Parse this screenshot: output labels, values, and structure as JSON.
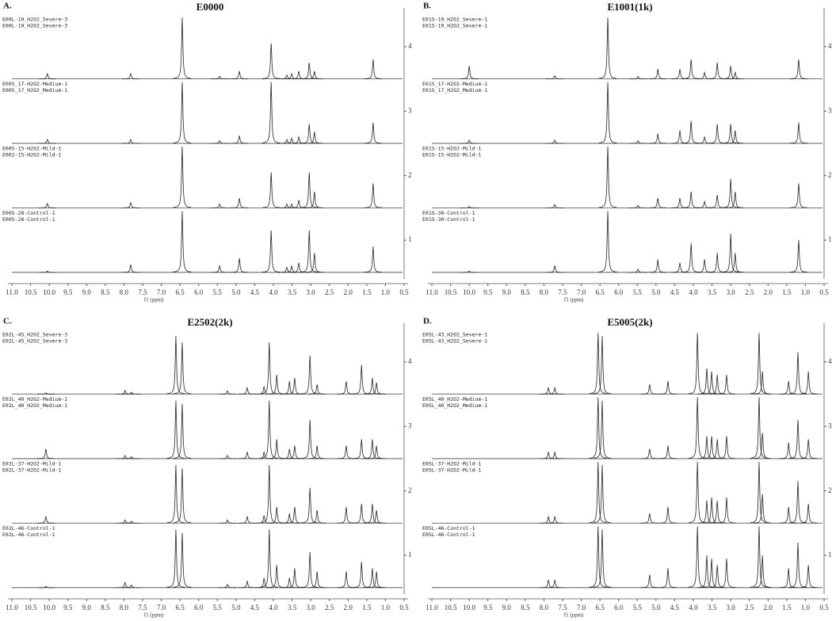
{
  "chart_data": [
    {
      "type": "nmr",
      "panel_label": "A.",
      "title": "E0000",
      "xlabel": "f1 (ppm)",
      "color": "#222",
      "xlim": [
        11,
        0.5
      ],
      "xticks": [
        {
          "value": 11,
          "label": "11.0"
        },
        10.5,
        {
          "value": 10,
          "label": "10.0"
        },
        9.5,
        {
          "value": 9,
          "label": "9.0"
        },
        8.5,
        {
          "value": 8,
          "label": "8.0"
        },
        7.5,
        {
          "value": 7,
          "label": "7.0"
        },
        6.5,
        {
          "value": 6,
          "label": "6.0"
        },
        5.5,
        {
          "value": 5,
          "label": "5.0"
        },
        4.5,
        {
          "value": 4,
          "label": "4.0"
        },
        3.5,
        {
          "value": 3,
          "label": "3.0"
        },
        2.5,
        {
          "value": 2,
          "label": "2.0"
        },
        1.5,
        {
          "value": 1,
          "label": "1.0"
        },
        0.5
      ],
      "ylim": [
        0.4,
        4.6
      ],
      "yticks": [
        1,
        2,
        3,
        4
      ],
      "x": [
        10.05,
        7.82,
        6.44,
        5.44,
        4.91,
        4.06,
        3.64,
        3.51,
        3.32,
        3.04,
        2.9,
        1.33
      ],
      "series": [
        {
          "labels": [
            "E00L-10_H2O2_Severe-3",
            "E00L-10_H2O2_Severe-3"
          ],
          "values": [
            0.08,
            0.08,
            0.95,
            0.04,
            0.12,
            0.55,
            0.06,
            0.08,
            0.12,
            0.25,
            0.12,
            0.3
          ]
        },
        {
          "labels": [
            "E00S_17-H2O2-Medium-1",
            "E00S_17_H2O2_Medium-1"
          ],
          "values": [
            0.06,
            0.06,
            0.95,
            0.04,
            0.12,
            0.95,
            0.06,
            0.08,
            0.1,
            0.3,
            0.18,
            0.32
          ]
        },
        {
          "labels": [
            "E00S-15-H2O2-Mild-1",
            "E002-15-H2O2-Mild-1"
          ],
          "values": [
            0.07,
            0.08,
            0.95,
            0.06,
            0.15,
            0.55,
            0.06,
            0.06,
            0.12,
            0.55,
            0.25,
            0.38
          ]
        },
        {
          "labels": [
            "E00S-28-Control-1",
            "E00S-28-Control-1"
          ],
          "values": [
            0.02,
            0.12,
            0.95,
            0.1,
            0.22,
            0.65,
            0.08,
            0.1,
            0.15,
            0.65,
            0.3,
            0.4
          ]
        }
      ]
    },
    {
      "type": "nmr",
      "panel_label": "B.",
      "title": "E1001(1k)",
      "xlabel": "f1 (ppm)",
      "color": "#222",
      "xlim": [
        11,
        0.5
      ],
      "xticks": [
        {
          "value": 11,
          "label": "11.0"
        },
        10.5,
        {
          "value": 10,
          "label": "10.0"
        },
        9.5,
        {
          "value": 9,
          "label": "9.0"
        },
        8.5,
        {
          "value": 8,
          "label": "8.0"
        },
        7.5,
        {
          "value": 7,
          "label": "7.0"
        },
        6.5,
        {
          "value": 6,
          "label": "6.0"
        },
        5.5,
        {
          "value": 5,
          "label": "5.0"
        },
        4.5,
        {
          "value": 4,
          "label": "4.0"
        },
        3.5,
        {
          "value": 3,
          "label": "3.0"
        },
        2.5,
        {
          "value": 2,
          "label": "2.0"
        },
        1.5,
        {
          "value": 1,
          "label": "1.0"
        },
        0.5
      ],
      "ylim": [
        0.4,
        4.6
      ],
      "yticks": [
        1,
        2,
        3,
        4
      ],
      "x": [
        10.0,
        7.71,
        6.29,
        5.48,
        4.95,
        4.36,
        4.06,
        3.7,
        3.36,
        3.0,
        2.88,
        1.18
      ],
      "series": [
        {
          "labels": [
            "E01S-19_H2O2_Severe-1",
            "E01S-19_H2O2_Severe-1"
          ],
          "values": [
            0.2,
            0.05,
            0.95,
            0.04,
            0.15,
            0.15,
            0.3,
            0.1,
            0.25,
            0.2,
            0.1,
            0.3
          ]
        },
        {
          "labels": [
            "E01S_17-H2O2-Medium-1",
            "E01S_17_H2O2_Medium-1"
          ],
          "values": [
            0.05,
            0.05,
            0.95,
            0.04,
            0.15,
            0.2,
            0.35,
            0.1,
            0.3,
            0.3,
            0.2,
            0.32
          ]
        },
        {
          "labels": [
            "E01S-15-H2O2-Mild-1",
            "E01S-15-H2O2-Mild-1"
          ],
          "values": [
            0.02,
            0.05,
            0.95,
            0.04,
            0.15,
            0.15,
            0.25,
            0.1,
            0.2,
            0.45,
            0.25,
            0.38
          ]
        },
        {
          "labels": [
            "E01S-30-Control-1",
            "E01S-30-Control-1"
          ],
          "values": [
            0.02,
            0.1,
            0.95,
            0.05,
            0.2,
            0.15,
            0.45,
            0.2,
            0.3,
            0.6,
            0.3,
            0.5
          ]
        }
      ]
    },
    {
      "type": "nmr",
      "panel_label": "C.",
      "title": "E2502(2k)",
      "xlabel": "f1 (ppm)",
      "color": "#222",
      "xlim": [
        11,
        0.5
      ],
      "xticks": [
        {
          "value": 11,
          "label": "11.0"
        },
        10.5,
        {
          "value": 10,
          "label": "10.0"
        },
        9.5,
        {
          "value": 9,
          "label": "9.0"
        },
        8.5,
        {
          "value": 8,
          "label": "8.0"
        },
        7.5,
        {
          "value": 7,
          "label": "7.0"
        },
        6.5,
        {
          "value": 6,
          "label": "6.0"
        },
        5.5,
        {
          "value": 5,
          "label": "5.0"
        },
        4.5,
        {
          "value": 4,
          "label": "4.0"
        },
        3.5,
        {
          "value": 3,
          "label": "3.0"
        },
        2.5,
        {
          "value": 2,
          "label": "2.0"
        },
        1.5,
        {
          "value": 1,
          "label": "1.0"
        },
        0.5
      ],
      "ylim": [
        0.4,
        4.6
      ],
      "yticks": [
        1,
        2,
        3,
        4
      ],
      "x": [
        10.09,
        7.97,
        7.8,
        6.61,
        6.44,
        5.23,
        4.7,
        4.25,
        4.11,
        3.91,
        3.57,
        3.43,
        3.02,
        2.83,
        2.05,
        1.64,
        1.35,
        1.24
      ],
      "series": [
        {
          "labels": [
            "E02L-45_H2O2_Severe-3",
            "E02L-45_H2O2_Severe-3"
          ],
          "values": [
            0.02,
            0.06,
            0.03,
            0.9,
            0.8,
            0.05,
            0.1,
            0.12,
            0.8,
            0.3,
            0.2,
            0.25,
            0.6,
            0.15,
            0.2,
            0.45,
            0.25,
            0.18
          ]
        },
        {
          "labels": [
            "E02L_40_H2O2-Medium-1",
            "E02L_40_H2O2_Medium-1"
          ],
          "values": [
            0.15,
            0.05,
            0.03,
            0.9,
            0.85,
            0.05,
            0.1,
            0.1,
            0.9,
            0.3,
            0.15,
            0.2,
            0.6,
            0.2,
            0.2,
            0.3,
            0.3,
            0.2
          ]
        },
        {
          "labels": [
            "E02L-37-H2O2-Mild-1",
            "E02L-37-H2O2-Mild-1"
          ],
          "values": [
            0.1,
            0.05,
            0.03,
            0.9,
            0.85,
            0.05,
            0.1,
            0.12,
            0.9,
            0.25,
            0.15,
            0.25,
            0.55,
            0.2,
            0.25,
            0.3,
            0.3,
            0.2
          ]
        },
        {
          "labels": [
            "E02L-46-Control-1",
            "E02L-46-Control-1"
          ],
          "values": [
            0.02,
            0.08,
            0.04,
            0.9,
            0.85,
            0.05,
            0.1,
            0.15,
            0.9,
            0.35,
            0.15,
            0.3,
            0.55,
            0.25,
            0.25,
            0.4,
            0.3,
            0.25
          ]
        }
      ]
    },
    {
      "type": "nmr",
      "panel_label": "D.",
      "title": "E5005(2k)",
      "xlabel": "f1 (ppm)",
      "color": "#222",
      "xlim": [
        11,
        0.5
      ],
      "xticks": [
        {
          "value": 11,
          "label": "11.0"
        },
        10.5,
        {
          "value": 10,
          "label": "10.0"
        },
        9.5,
        {
          "value": 9,
          "label": "9.0"
        },
        8.5,
        {
          "value": 8,
          "label": "8.0"
        },
        7.5,
        {
          "value": 7,
          "label": "7.0"
        },
        6.5,
        {
          "value": 6,
          "label": "6.0"
        },
        5.5,
        {
          "value": 5,
          "label": "5.0"
        },
        4.5,
        {
          "value": 4,
          "label": "4.0"
        },
        3.5,
        {
          "value": 3,
          "label": "3.0"
        },
        2.5,
        {
          "value": 2,
          "label": "2.0"
        },
        1.5,
        {
          "value": 1,
          "label": "1.0"
        },
        0.5
      ],
      "ylim": [
        0.4,
        4.6
      ],
      "yticks": [
        1,
        2,
        3,
        4
      ],
      "x": [
        7.88,
        7.71,
        6.55,
        6.44,
        5.17,
        4.68,
        3.89,
        3.64,
        3.51,
        3.36,
        3.11,
        2.24,
        2.15,
        1.45,
        1.2,
        0.92
      ],
      "series": [
        {
          "labels": [
            "E05L-43_H2O2_Severe-1",
            "E05L-43_H2O2_Severe-1"
          ],
          "values": [
            0.1,
            0.1,
            0.95,
            0.9,
            0.15,
            0.2,
            0.95,
            0.4,
            0.35,
            0.3,
            0.3,
            0.95,
            0.35,
            0.2,
            0.65,
            0.35
          ]
        },
        {
          "labels": [
            "E05L_40_H2O2-Medium-1",
            "E05L_40_H2O2_Medium-1"
          ],
          "values": [
            0.1,
            0.1,
            0.95,
            0.9,
            0.15,
            0.2,
            0.95,
            0.35,
            0.35,
            0.3,
            0.35,
            0.95,
            0.4,
            0.25,
            0.6,
            0.3
          ]
        },
        {
          "labels": [
            "E05L-37-H2O2-Mild-1",
            "E05L-37-H2O2-Mild-1"
          ],
          "values": [
            0.1,
            0.1,
            0.95,
            0.9,
            0.15,
            0.25,
            0.95,
            0.35,
            0.4,
            0.35,
            0.4,
            0.95,
            0.45,
            0.25,
            0.65,
            0.3
          ]
        },
        {
          "labels": [
            "E05L-46-Control-1",
            "E05L-46-Control-1"
          ],
          "values": [
            0.12,
            0.12,
            0.95,
            0.9,
            0.2,
            0.3,
            0.95,
            0.5,
            0.45,
            0.35,
            0.45,
            0.95,
            0.5,
            0.3,
            0.7,
            0.35
          ]
        }
      ]
    }
  ]
}
